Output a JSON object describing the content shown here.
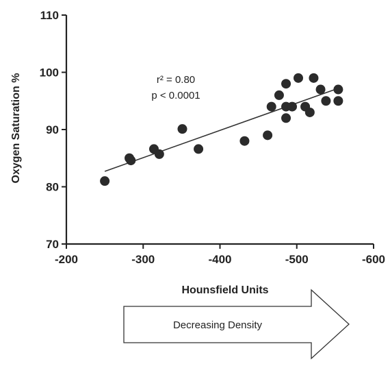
{
  "chart_data": {
    "type": "scatter",
    "xlabel": "Hounsfield Units",
    "ylabel": "Oxygen Saturation %",
    "xlim": [
      -200,
      -600
    ],
    "ylim": [
      70,
      110
    ],
    "x_ticks": [
      "-200",
      "-300",
      "-400",
      "-500",
      "-600"
    ],
    "y_ticks": [
      "70",
      "80",
      "90",
      "100",
      "110"
    ],
    "grid": false,
    "points": [
      {
        "x": -250,
        "y": 81
      },
      {
        "x": -282,
        "y": 85
      },
      {
        "x": -284,
        "y": 84.6
      },
      {
        "x": -314,
        "y": 86.6
      },
      {
        "x": -321,
        "y": 85.7
      },
      {
        "x": -351,
        "y": 90.1
      },
      {
        "x": -372,
        "y": 86.6
      },
      {
        "x": -432,
        "y": 88
      },
      {
        "x": -462,
        "y": 89
      },
      {
        "x": -467,
        "y": 94
      },
      {
        "x": -477,
        "y": 96
      },
      {
        "x": -486,
        "y": 98
      },
      {
        "x": -486,
        "y": 94
      },
      {
        "x": -486,
        "y": 92
      },
      {
        "x": -494,
        "y": 94
      },
      {
        "x": -502,
        "y": 99
      },
      {
        "x": -511,
        "y": 94
      },
      {
        "x": -517,
        "y": 93
      },
      {
        "x": -522,
        "y": 99
      },
      {
        "x": -531,
        "y": 97
      },
      {
        "x": -538,
        "y": 95
      },
      {
        "x": -554,
        "y": 97
      },
      {
        "x": -554,
        "y": 95
      }
    ],
    "fit_line": {
      "x": [
        -250,
        -554
      ],
      "y": [
        82.7,
        97.2
      ]
    },
    "annotations": [
      "r² = 0.80",
      "p < 0.0001"
    ],
    "arrow_label": "Decreasing Density"
  }
}
